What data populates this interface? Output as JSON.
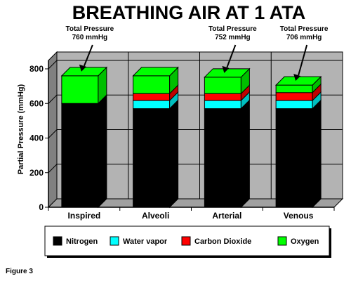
{
  "chart_data": {
    "type": "bar",
    "title": "BREATHING AIR AT 1 ATA",
    "xlabel": "",
    "ylabel": "Partial Pressure (mmHg)",
    "ylim": [
      0,
      800
    ],
    "yticks": [
      "0",
      "200",
      "400",
      "600",
      "800"
    ],
    "ytick_values": [
      0,
      200,
      400,
      600,
      800
    ],
    "categories": [
      "Inspired",
      "Alveoli",
      "Arterial",
      "Venous"
    ],
    "stacked": true,
    "three_d": true,
    "grid": true,
    "legend_position": "bottom",
    "series": [
      {
        "name": "Nitrogen",
        "color": "#000000",
        "values": [
          600,
          570,
          570,
          570
        ]
      },
      {
        "name": "Water vapor",
        "color": "#00ffff",
        "values": [
          0,
          47,
          47,
          47
        ]
      },
      {
        "name": "Carbon Dioxide",
        "color": "#ff0000",
        "values": [
          0,
          40,
          40,
          46
        ]
      },
      {
        "name": "Oxygen",
        "color": "#00ff00",
        "values": [
          160,
          103,
          95,
          43
        ]
      }
    ],
    "annotations": [
      {
        "category": "Inspired",
        "lines": [
          "Total Pressure",
          "760 mmHg"
        ]
      },
      {
        "category": "Arterial",
        "lines": [
          "Total Pressure",
          "752 mmHg"
        ]
      },
      {
        "category": "Venous",
        "lines": [
          "Total Pressure",
          "706 mmHg"
        ]
      }
    ],
    "caption": "Figure 3"
  },
  "colors": {
    "plot_background": "#b3b3b3",
    "wall_side": "#808080",
    "floor": "#a0a0a0"
  }
}
